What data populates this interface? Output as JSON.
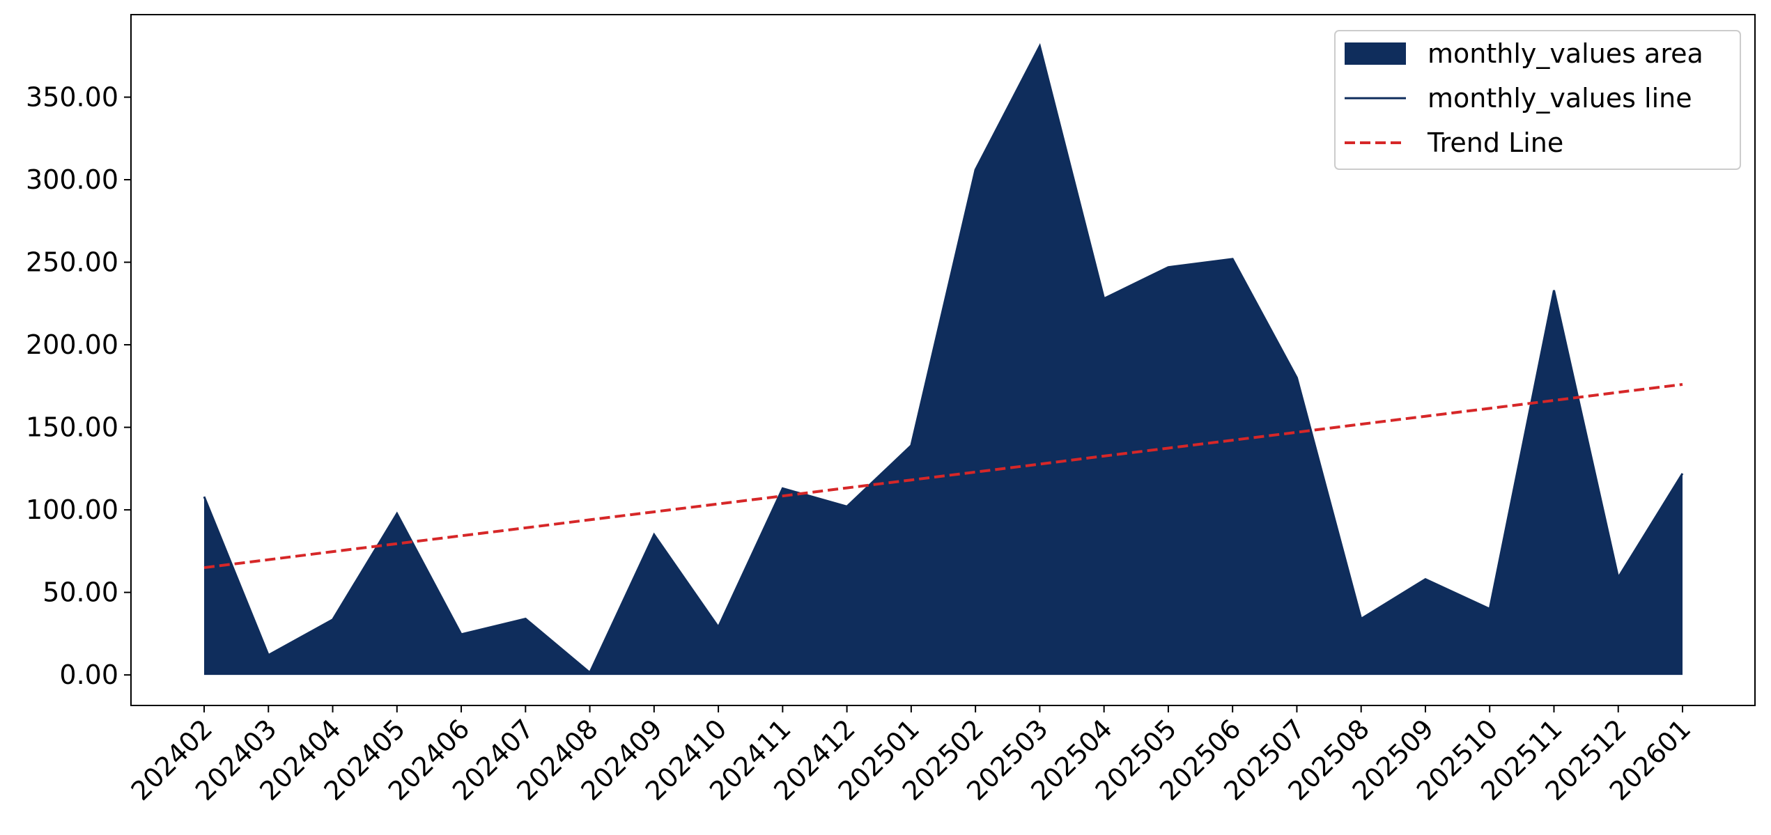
{
  "chart_data": {
    "type": "area",
    "categories": [
      "202402",
      "202403",
      "202404",
      "202405",
      "202406",
      "202407",
      "202408",
      "202409",
      "202410",
      "202411",
      "202412",
      "202501",
      "202502",
      "202503",
      "202504",
      "202505",
      "202506",
      "202507",
      "202508",
      "202509",
      "202510",
      "202511",
      "202512",
      "202601"
    ],
    "series": [
      {
        "name": "monthly_values area",
        "color": "#0f2d5c",
        "style": "area",
        "values": [
          108,
          12,
          33.5,
          97.7,
          24.6,
          34,
          1.4,
          85,
          29,
          113,
          102,
          139,
          306,
          381,
          228,
          247,
          252,
          180,
          34,
          58,
          40,
          233,
          59,
          122
        ]
      },
      {
        "name": "monthly_values line",
        "color": "#0f2d5c",
        "style": "line",
        "values": [
          108,
          12,
          33.5,
          97.7,
          24.6,
          34,
          1.4,
          85,
          29,
          113,
          102,
          139,
          306,
          381,
          228,
          247,
          252,
          180,
          34,
          58,
          40,
          233,
          59,
          122
        ]
      },
      {
        "name": "Trend Line",
        "color": "#d62728",
        "style": "dashed",
        "values": [
          65.0,
          69.8,
          74.7,
          79.5,
          84.3,
          89.1,
          94.0,
          98.8,
          103.6,
          108.4,
          113.3,
          118.1,
          122.9,
          127.7,
          132.6,
          137.4,
          142.2,
          147.0,
          151.9,
          156.7,
          161.5,
          166.3,
          171.2,
          176.0
        ]
      }
    ],
    "ylim": [
      -18.5,
      400
    ],
    "yticks": [
      {
        "value": 0,
        "label": "0.00"
      },
      {
        "value": 50,
        "label": "50.00"
      },
      {
        "value": 100,
        "label": "100.00"
      },
      {
        "value": 150,
        "label": "150.00"
      },
      {
        "value": 200,
        "label": "200.00"
      },
      {
        "value": 250,
        "label": "250.00"
      },
      {
        "value": 300,
        "label": "300.00"
      },
      {
        "value": 350,
        "label": "350.00"
      }
    ],
    "legend": "upper right",
    "grid": false
  }
}
